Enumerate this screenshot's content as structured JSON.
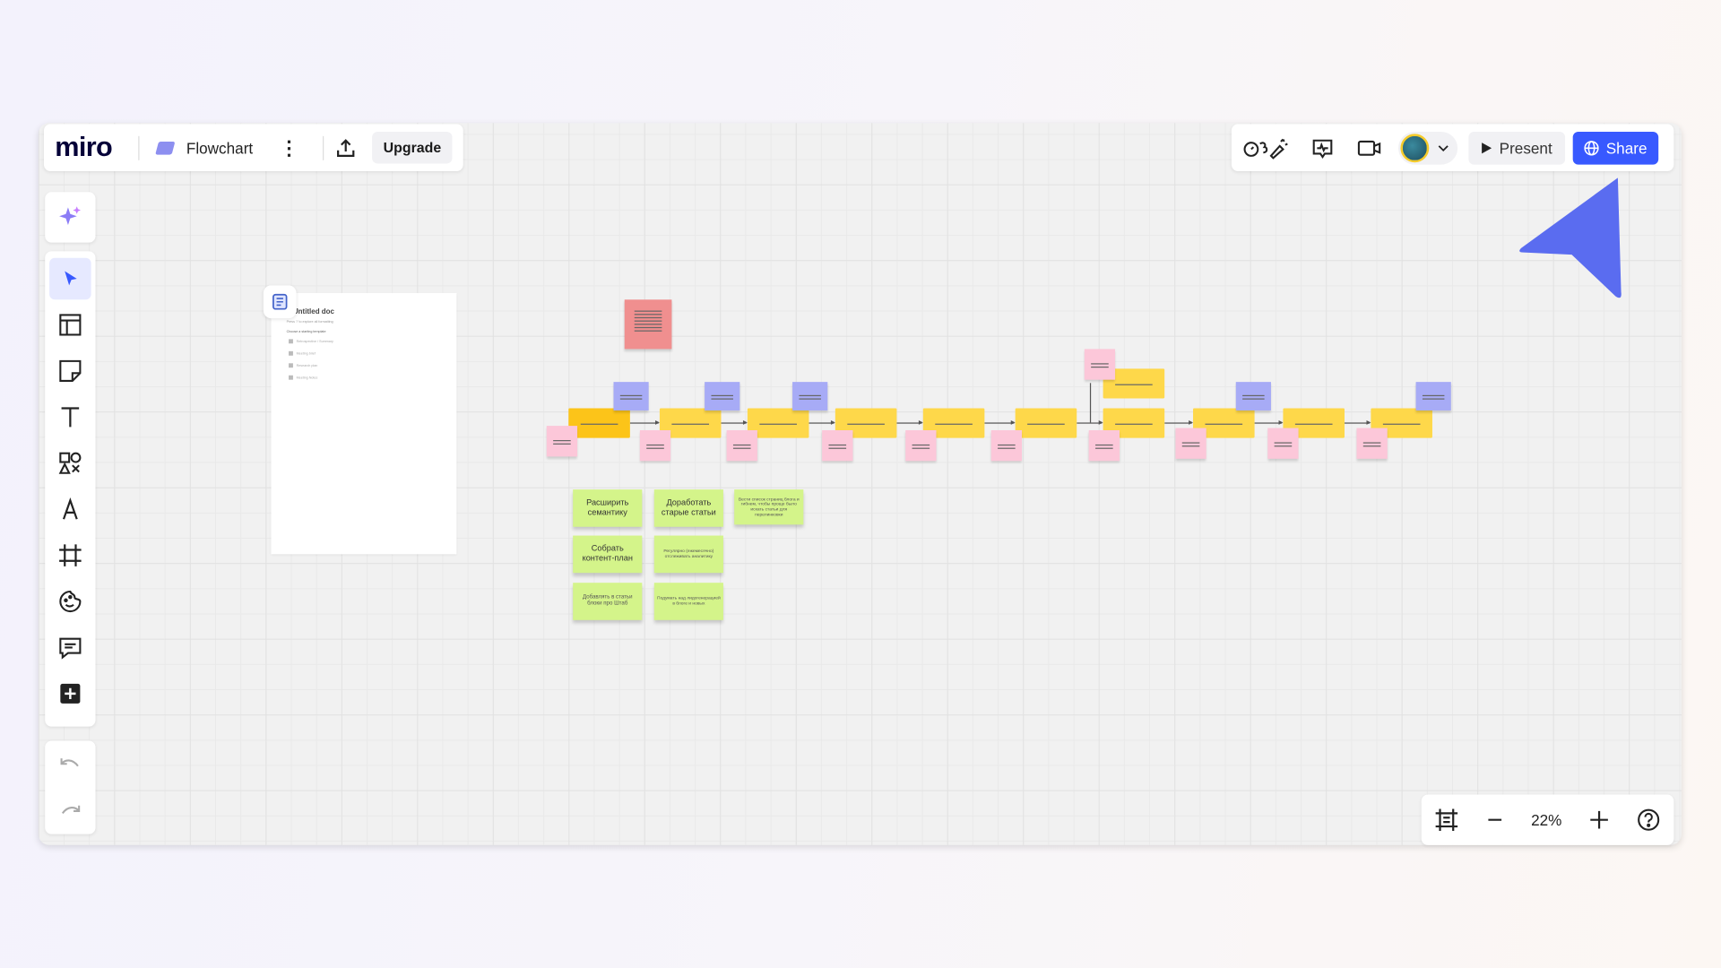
{
  "header": {
    "logo": "miro",
    "board_title": "Flowchart",
    "upgrade_label": "Upgrade",
    "present_label": "Present",
    "share_label": "Share",
    "share_color": "#3859ff"
  },
  "toolbar": {
    "tools": [
      "ai-sparkle",
      "select",
      "templates",
      "sticky-note",
      "text",
      "shapes",
      "pen",
      "frame",
      "stickers",
      "comment",
      "add-more"
    ],
    "selected": "select"
  },
  "zoom": {
    "level": "22%"
  },
  "doc": {
    "title": "Untitled doc",
    "subtitle": "Press '/' to explore all formatting",
    "choose_label": "Choose a starting template",
    "items": [
      "Retrospective / Summary",
      "Meeting brief",
      "Research plan",
      "Meeting Notes"
    ]
  },
  "green_stickies": [
    {
      "text": "Расширить семантику"
    },
    {
      "text": "Доработать старые статьи"
    },
    {
      "text": "Вести список страниц блога и гибнем, чтобы проще было искать статьи для перелинковки"
    },
    {
      "text": "Собрать контент-план"
    },
    {
      "text": "Регулярно (ежемесячно) отслеживать аналитику"
    },
    {
      "text": "Добавлять в статьи блоки про Штаб"
    },
    {
      "text": "Подумать над лидогенерацией в блоге и новых"
    }
  ],
  "colors": {
    "yellow": "#fed84a",
    "purple": "#a7abf6",
    "pink": "#fcc7d9",
    "red": "#f08f8f",
    "green": "#d4f48a",
    "cursor": "#5a6cf0"
  }
}
